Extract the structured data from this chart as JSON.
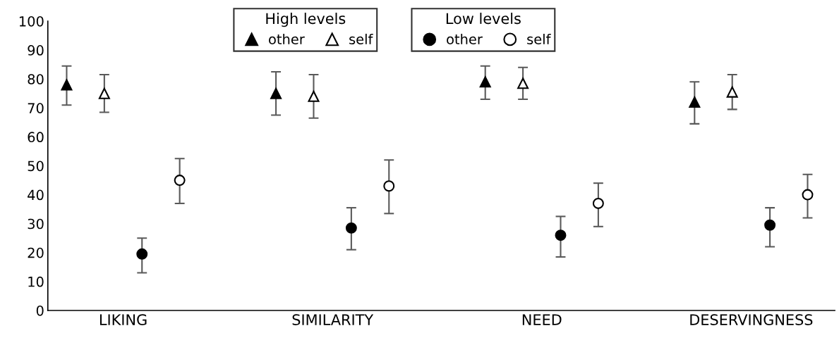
{
  "chart_data": {
    "type": "scatter",
    "categories": [
      "LIKING",
      "SIMILARITY",
      "NEED",
      "DESERVINGNESS"
    ],
    "ylim": [
      0,
      100
    ],
    "yticks": [
      0,
      10,
      20,
      30,
      40,
      50,
      60,
      70,
      80,
      90,
      100
    ],
    "grid": false,
    "legend": "top",
    "legend_title": [
      "High levels",
      "Low levels"
    ],
    "series": [
      {
        "name": "other",
        "marker": "triangle",
        "color": "#000000",
        "values": [
          78,
          75,
          79,
          72
        ],
        "errors": [
          [
            71,
            84.5
          ],
          [
            67.5,
            82.5
          ],
          [
            73,
            84.5
          ],
          [
            64.5,
            79
          ]
        ]
      },
      {
        "name": "self",
        "marker": "triangle",
        "color": "#ffffff",
        "values": [
          75,
          74,
          78.5,
          75.5
        ],
        "errors": [
          [
            68.5,
            81.5
          ],
          [
            66.5,
            81.5
          ],
          [
            73,
            84
          ],
          [
            69.5,
            81.5
          ]
        ]
      },
      {
        "name": "other",
        "marker": "circle",
        "color": "#000000",
        "values": [
          19.5,
          28.5,
          26,
          29.5
        ],
        "errors": [
          [
            13,
            25
          ],
          [
            21,
            35.5
          ],
          [
            18.5,
            32.5
          ],
          [
            22,
            35.5
          ]
        ]
      },
      {
        "name": "self",
        "marker": "circle",
        "color": "#ffffff",
        "values": [
          45,
          43,
          37,
          40
        ],
        "errors": [
          [
            37,
            52.5
          ],
          [
            33.5,
            52
          ],
          [
            29,
            44
          ],
          [
            32,
            47
          ]
        ]
      }
    ]
  }
}
